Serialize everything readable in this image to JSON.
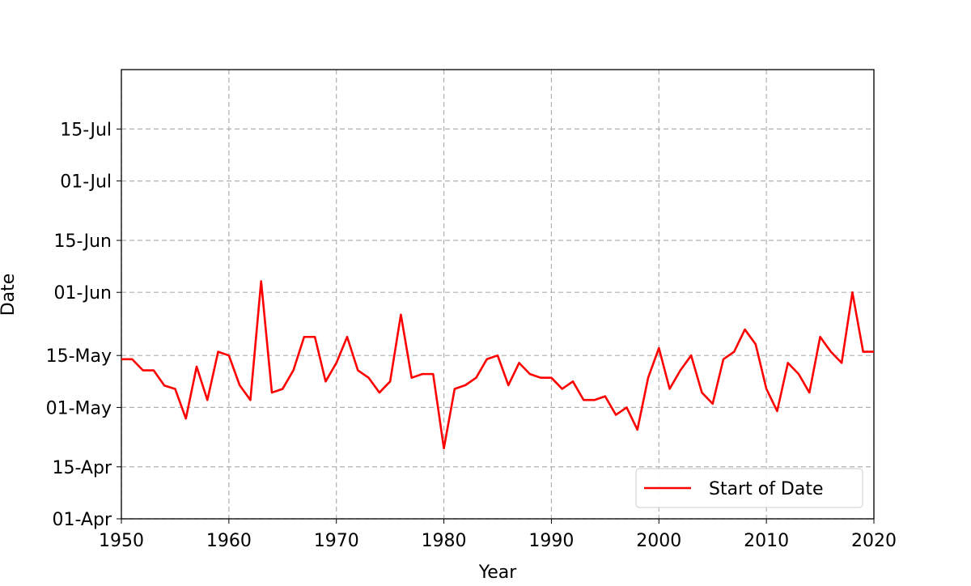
{
  "chart_data": {
    "type": "line",
    "x_label": "Year",
    "y_label": "Date",
    "x": [
      1950,
      1951,
      1952,
      1953,
      1954,
      1955,
      1956,
      1957,
      1958,
      1959,
      1960,
      1961,
      1962,
      1963,
      1964,
      1965,
      1966,
      1967,
      1968,
      1969,
      1970,
      1971,
      1972,
      1973,
      1974,
      1975,
      1976,
      1977,
      1978,
      1979,
      1980,
      1981,
      1982,
      1983,
      1984,
      1985,
      1986,
      1987,
      1988,
      1989,
      1990,
      1991,
      1992,
      1993,
      1994,
      1995,
      1996,
      1997,
      1998,
      1999,
      2000,
      2001,
      2002,
      2003,
      2004,
      2005,
      2006,
      2007,
      2008,
      2009,
      2010,
      2011,
      2012,
      2013,
      2014,
      2015,
      2016,
      2017,
      2018,
      2019,
      2020
    ],
    "series": [
      {
        "name": "Start of Date",
        "color": "#ff0000",
        "values": [
          134,
          134,
          131,
          131,
          126.9,
          126,
          118,
          132,
          123,
          136,
          135,
          127,
          123,
          155,
          125,
          126,
          131,
          140,
          140,
          128,
          133,
          140,
          131,
          129,
          125,
          128,
          146,
          129,
          130,
          130,
          110,
          126,
          127,
          129,
          134,
          135,
          127,
          133,
          130,
          129,
          129,
          126,
          128,
          123,
          123,
          124,
          119,
          121,
          115,
          129,
          137,
          126,
          131,
          135,
          125,
          122,
          134,
          136,
          142,
          138,
          126,
          120,
          133,
          130,
          125,
          140,
          136,
          133,
          152,
          136,
          136
        ]
      }
    ],
    "xlim": [
      1950,
      2020
    ],
    "xticks": [
      1950,
      1960,
      1970,
      1980,
      1990,
      2000,
      2010,
      2020
    ],
    "ylim": [
      91,
      212
    ],
    "yticks": [
      {
        "value": 91,
        "label": "01-Apr"
      },
      {
        "value": 105,
        "label": "15-Apr"
      },
      {
        "value": 121,
        "label": "01-May"
      },
      {
        "value": 135,
        "label": "15-May"
      },
      {
        "value": 152,
        "label": "01-Jun"
      },
      {
        "value": 166,
        "label": "15-Jun"
      },
      {
        "value": 182,
        "label": "01-Jul"
      },
      {
        "value": 196,
        "label": "15-Jul"
      }
    ],
    "grid": true,
    "legend_position": "lower-right"
  }
}
